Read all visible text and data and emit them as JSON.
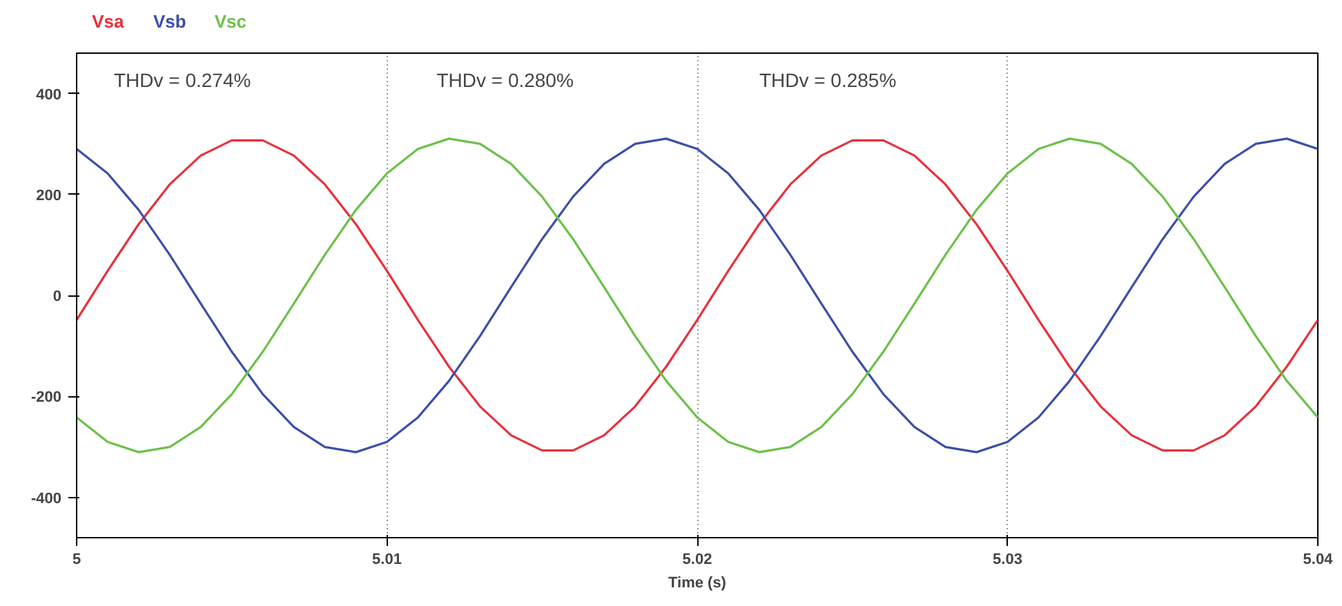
{
  "chart_data": {
    "type": "line",
    "xlabel": "Time (s)",
    "x": [
      5,
      5.001,
      5.002,
      5.003,
      5.004,
      5.005,
      5.006,
      5.007,
      5.008,
      5.009,
      5.01,
      5.011,
      5.012,
      5.013,
      5.014,
      5.015,
      5.016,
      5.017,
      5.018,
      5.019,
      5.02,
      5.021,
      5.022,
      5.023,
      5.024,
      5.025,
      5.026,
      5.027,
      5.028,
      5.029,
      5.03,
      5.031,
      5.032,
      5.033,
      5.034,
      5.035,
      5.036,
      5.037,
      5.038,
      5.039,
      5.04
    ],
    "series": [
      {
        "name": "Vsa",
        "color": "#e8303a",
        "values": [
          -48.6,
          48.6,
          141.2,
          219.9,
          277.1,
          307.2,
          307.2,
          277.1,
          219.9,
          141.2,
          48.6,
          -48.6,
          -141.2,
          -219.9,
          -277.1,
          -307.2,
          -307.2,
          -277.1,
          -219.9,
          -141.2,
          -48.6,
          48.6,
          141.2,
          219.9,
          277.1,
          307.2,
          307.2,
          277.1,
          219.9,
          141.2,
          48.6,
          -48.6,
          -141.2,
          -219.9,
          -277.1,
          -307.2,
          -307.2,
          -277.1,
          -219.9,
          -141.2,
          -48.6
        ]
      },
      {
        "name": "Vsb",
        "color": "#3c4ea8",
        "values": [
          290.3,
          241.7,
          169.4,
          80.5,
          -16.3,
          -111.5,
          -195.7,
          -260.8,
          -300.4,
          -310.6,
          -290.3,
          -241.7,
          -169.4,
          -80.5,
          16.3,
          111.5,
          195.7,
          260.8,
          300.4,
          310.6,
          290.3,
          241.7,
          169.4,
          80.5,
          -16.3,
          -111.5,
          -195.7,
          -260.8,
          -300.4,
          -310.6,
          -290.3,
          -241.7,
          -169.4,
          -80.5,
          16.3,
          111.5,
          195.7,
          260.8,
          300.4,
          310.6,
          290.3
        ]
      },
      {
        "name": "Vsc",
        "color": "#6cc04a",
        "values": [
          -241.7,
          -290.3,
          -310.6,
          -300.4,
          -260.8,
          -195.7,
          -111.5,
          -16.3,
          80.5,
          169.4,
          241.7,
          290.3,
          310.6,
          300.4,
          260.8,
          195.7,
          111.5,
          16.3,
          -80.5,
          -169.4,
          -241.7,
          -290.3,
          -310.6,
          -300.4,
          -260.8,
          -195.7,
          -111.5,
          -16.3,
          80.5,
          169.4,
          241.7,
          290.3,
          310.6,
          300.4,
          260.8,
          195.7,
          111.5,
          16.3,
          -80.5,
          -169.4,
          -241.7
        ]
      }
    ],
    "xlim": [
      5,
      5.04
    ],
    "xticks": [
      5,
      5.01,
      5.02,
      5.03,
      5.04
    ],
    "ylim": [
      -480,
      480
    ],
    "yticks": [
      -400,
      -200,
      0,
      200,
      400
    ],
    "grid": "x",
    "marker": "none",
    "line_style": "solid",
    "annotations": [
      "THDv = 0.274%",
      "THDv = 0.280%",
      "THDv = 0.285%"
    ]
  }
}
